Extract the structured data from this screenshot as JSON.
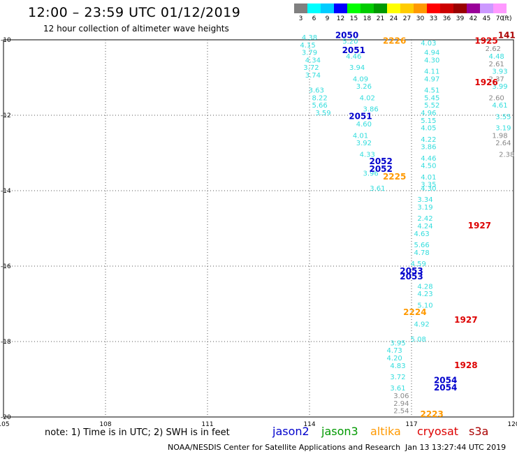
{
  "header": {
    "title": "12:00 – 23:59 UTC 01/12/2019",
    "subtitle": "12 hour collection of altimeter wave heights"
  },
  "color_scale": {
    "labels": [
      "3",
      "6",
      "9",
      "12",
      "15",
      "18",
      "21",
      "24",
      "27",
      "30",
      "33",
      "36",
      "39",
      "42",
      "45",
      "70"
    ],
    "unit": "(ft)",
    "colors": [
      "#808080",
      "#00ffff",
      "#00ccff",
      "#0000ff",
      "#00ff00",
      "#00cc00",
      "#009900",
      "#ffff00",
      "#ffcc00",
      "#ff9900",
      "#ff0000",
      "#cc0000",
      "#990000",
      "#990099",
      "#cc99ff",
      "#ff99ff",
      "#ffffff"
    ]
  },
  "footer": {
    "note": "note:  1) Time is in UTC;  2) SWH is in feet",
    "credit": "NOAA/NESDIS Center for Satellite Applications and Research",
    "timestamp": "Jan 13 13:27:44 UTC 2019"
  },
  "legend": [
    {
      "name": "jason2",
      "color": "#0000cc"
    },
    {
      "name": "jason3",
      "color": "#009900"
    },
    {
      "name": "altika",
      "color": "#ff9900"
    },
    {
      "name": "cryosat",
      "color": "#dd0000"
    },
    {
      "name": "s3a",
      "color": "#aa0000"
    }
  ],
  "chart_data": {
    "type": "scatter",
    "xlim": [
      105,
      120
    ],
    "ylim": [
      -20,
      -10
    ],
    "x_ticks": [
      "105",
      "108",
      "111",
      "114",
      "117",
      "120"
    ],
    "y_ticks": [
      "-10",
      "-12",
      "-14",
      "-16",
      "-18",
      "-20"
    ],
    "grid": true,
    "time_labels": [
      {
        "lon": 115.1,
        "lat": -9.95,
        "text": "2050",
        "color": "#0000cc"
      },
      {
        "lon": 116.5,
        "lat": -10.1,
        "text": "2226",
        "color": "#ff9900"
      },
      {
        "lon": 115.3,
        "lat": -10.35,
        "text": "2051",
        "color": "#0000cc"
      },
      {
        "lon": 119.2,
        "lat": -10.1,
        "text": "1925",
        "color": "#dd0000"
      },
      {
        "lon": 119.8,
        "lat": -9.95,
        "text": "141",
        "color": "#aa0000"
      },
      {
        "lon": 119.2,
        "lat": -11.2,
        "text": "1926",
        "color": "#dd0000"
      },
      {
        "lon": 115.5,
        "lat": -12.1,
        "text": "2051",
        "color": "#0000cc"
      },
      {
        "lon": 116.1,
        "lat": -13.3,
        "text": "2052",
        "color": "#0000cc"
      },
      {
        "lon": 116.1,
        "lat": -13.5,
        "text": "2052",
        "color": "#0000cc"
      },
      {
        "lon": 116.5,
        "lat": -13.7,
        "text": "2225",
        "color": "#ff9900"
      },
      {
        "lon": 119.0,
        "lat": -15.0,
        "text": "1927",
        "color": "#dd0000"
      },
      {
        "lon": 117.0,
        "lat": -16.2,
        "text": "2053",
        "color": "#0000cc"
      },
      {
        "lon": 117.0,
        "lat": -16.35,
        "text": "2053",
        "color": "#0000cc"
      },
      {
        "lon": 117.1,
        "lat": -17.3,
        "text": "2224",
        "color": "#ff9900"
      },
      {
        "lon": 118.6,
        "lat": -17.5,
        "text": "1927",
        "color": "#dd0000"
      },
      {
        "lon": 118.6,
        "lat": -18.7,
        "text": "1928",
        "color": "#dd0000"
      },
      {
        "lon": 118.0,
        "lat": -19.1,
        "text": "2054",
        "color": "#0000cc"
      },
      {
        "lon": 118.0,
        "lat": -19.3,
        "text": "2054",
        "color": "#0000cc"
      },
      {
        "lon": 117.6,
        "lat": -20.0,
        "text": "2223",
        "color": "#ff9900"
      }
    ],
    "tracks": [
      {
        "name": "track-a",
        "color": "#33dddd",
        "points": [
          {
            "lon": 114.0,
            "lat": -10.0,
            "value": 4.38
          },
          {
            "lon": 113.95,
            "lat": -10.2,
            "value": 4.15
          },
          {
            "lon": 114.0,
            "lat": -10.4,
            "value": 3.79
          },
          {
            "lon": 114.1,
            "lat": -10.6,
            "value": 4.34
          },
          {
            "lon": 114.05,
            "lat": -10.8,
            "value": 3.72
          },
          {
            "lon": 114.1,
            "lat": -11.0,
            "value": 3.74
          },
          {
            "lon": 114.2,
            "lat": -11.4,
            "value": 3.63
          },
          {
            "lon": 114.3,
            "lat": -11.6,
            "value": 8.22
          },
          {
            "lon": 114.3,
            "lat": -11.8,
            "value": 5.66
          },
          {
            "lon": 114.4,
            "lat": -12.0,
            "value": 3.59
          }
        ]
      },
      {
        "name": "track-b",
        "color": "#33dddd",
        "points": [
          {
            "lon": 115.2,
            "lat": -10.1,
            "value": 5.2
          },
          {
            "lon": 115.3,
            "lat": -10.5,
            "value": 4.46
          },
          {
            "lon": 115.4,
            "lat": -10.8,
            "value": 3.94
          },
          {
            "lon": 115.5,
            "lat": -11.1,
            "value": 4.09
          },
          {
            "lon": 115.6,
            "lat": -11.3,
            "value": 3.26
          },
          {
            "lon": 115.7,
            "lat": -11.6,
            "value": 4.02
          },
          {
            "lon": 115.8,
            "lat": -11.9,
            "value": 3.86
          },
          {
            "lon": 115.6,
            "lat": -12.3,
            "value": 4.6
          },
          {
            "lon": 115.5,
            "lat": -12.6,
            "value": 4.01
          },
          {
            "lon": 115.6,
            "lat": -12.8,
            "value": 3.92
          },
          {
            "lon": 115.7,
            "lat": -13.1,
            "value": 4.33
          },
          {
            "lon": 115.8,
            "lat": -13.6,
            "value": 3.96
          },
          {
            "lon": 116.0,
            "lat": -14.0,
            "value": 3.61
          }
        ]
      },
      {
        "name": "track-c",
        "color": "#33dddd",
        "points": [
          {
            "lon": 117.5,
            "lat": -10.15,
            "value": 4.03
          },
          {
            "lon": 117.6,
            "lat": -10.4,
            "value": 4.94
          },
          {
            "lon": 117.6,
            "lat": -10.6,
            "value": 4.3
          },
          {
            "lon": 117.6,
            "lat": -10.9,
            "value": 4.11
          },
          {
            "lon": 117.6,
            "lat": -11.1,
            "value": 4.97
          },
          {
            "lon": 117.6,
            "lat": -11.4,
            "value": 4.51
          },
          {
            "lon": 117.6,
            "lat": -11.6,
            "value": 5.45
          },
          {
            "lon": 117.6,
            "lat": -11.8,
            "value": 5.52
          },
          {
            "lon": 117.5,
            "lat": -12.0,
            "value": 4.96
          },
          {
            "lon": 117.5,
            "lat": -12.2,
            "value": 5.15
          },
          {
            "lon": 117.5,
            "lat": -12.4,
            "value": 4.05
          },
          {
            "lon": 117.5,
            "lat": -12.7,
            "value": 4.22
          },
          {
            "lon": 117.5,
            "lat": -12.9,
            "value": 3.86
          },
          {
            "lon": 117.5,
            "lat": -13.2,
            "value": 4.46
          },
          {
            "lon": 117.5,
            "lat": -13.4,
            "value": 4.5
          },
          {
            "lon": 117.5,
            "lat": -13.7,
            "value": 4.01
          },
          {
            "lon": 117.5,
            "lat": -13.9,
            "value": 3.35
          },
          {
            "lon": 117.5,
            "lat": -14.0,
            "value": 4.3
          },
          {
            "lon": 117.4,
            "lat": -14.3,
            "value": 3.34
          },
          {
            "lon": 117.4,
            "lat": -14.5,
            "value": 3.19
          },
          {
            "lon": 117.4,
            "lat": -14.8,
            "value": 2.42
          },
          {
            "lon": 117.4,
            "lat": -15.0,
            "value": 4.24
          },
          {
            "lon": 117.3,
            "lat": -15.2,
            "value": 4.63
          },
          {
            "lon": 117.3,
            "lat": -15.5,
            "value": 5.66
          },
          {
            "lon": 117.3,
            "lat": -15.7,
            "value": 4.78
          },
          {
            "lon": 117.2,
            "lat": -16.0,
            "value": 4.59
          },
          {
            "lon": 117.4,
            "lat": -16.6,
            "value": 4.28
          },
          {
            "lon": 117.4,
            "lat": -16.8,
            "value": 4.23
          },
          {
            "lon": 117.4,
            "lat": -17.1,
            "value": 5.1
          },
          {
            "lon": 117.3,
            "lat": -17.6,
            "value": 4.92
          },
          {
            "lon": 117.2,
            "lat": -18.0,
            "value": 5.08
          }
        ]
      },
      {
        "name": "track-d",
        "color": "#888888",
        "points": [
          {
            "lon": 119.4,
            "lat": -10.3,
            "value": 2.62
          },
          {
            "lon": 119.5,
            "lat": -10.7,
            "value": 2.61
          },
          {
            "lon": 119.5,
            "lat": -11.1,
            "value": 2.37
          },
          {
            "lon": 119.5,
            "lat": -11.6,
            "value": 2.6
          },
          {
            "lon": 119.6,
            "lat": -12.6,
            "value": 1.98
          },
          {
            "lon": 119.7,
            "lat": -12.8,
            "value": 2.64
          },
          {
            "lon": 119.8,
            "lat": -13.1,
            "value": 2.38
          }
        ]
      },
      {
        "name": "track-e",
        "color": "#33dddd",
        "points": [
          {
            "lon": 119.5,
            "lat": -10.5,
            "value": 4.48
          },
          {
            "lon": 119.6,
            "lat": -10.9,
            "value": 3.93
          },
          {
            "lon": 119.6,
            "lat": -11.3,
            "value": 3.99
          },
          {
            "lon": 119.6,
            "lat": -11.8,
            "value": 4.61
          },
          {
            "lon": 119.7,
            "lat": -12.1,
            "value": 3.55
          },
          {
            "lon": 119.7,
            "lat": -12.4,
            "value": 3.19
          }
        ]
      },
      {
        "name": "track-f",
        "color": "#33dddd",
        "points": [
          {
            "lon": 116.6,
            "lat": -18.1,
            "value": 3.95
          },
          {
            "lon": 116.5,
            "lat": -18.3,
            "value": 4.73
          },
          {
            "lon": 116.5,
            "lat": -18.5,
            "value": 4.2
          },
          {
            "lon": 116.6,
            "lat": -18.7,
            "value": 4.83
          },
          {
            "lon": 116.6,
            "lat": -19.0,
            "value": 3.72
          },
          {
            "lon": 116.6,
            "lat": -19.3,
            "value": 3.61
          }
        ]
      },
      {
        "name": "track-g",
        "color": "#888888",
        "points": [
          {
            "lon": 116.7,
            "lat": -19.5,
            "value": 3.06
          },
          {
            "lon": 116.7,
            "lat": -19.7,
            "value": 2.94
          },
          {
            "lon": 116.7,
            "lat": -19.9,
            "value": 2.54
          }
        ]
      }
    ]
  }
}
